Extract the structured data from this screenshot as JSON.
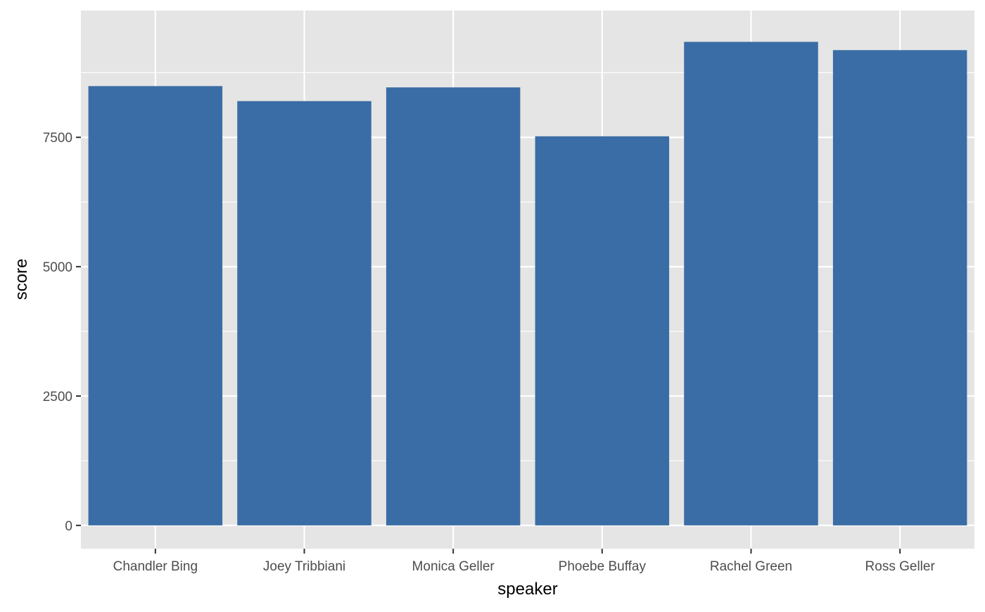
{
  "chart_data": {
    "type": "bar",
    "title": "",
    "xlabel": "speaker",
    "ylabel": "score",
    "categories": [
      "Chandler Bing",
      "Joey Tribbiani",
      "Monica Geller",
      "Phoebe Buffay",
      "Rachel Green",
      "Ross Geller"
    ],
    "values": [
      8490,
      8200,
      8465,
      7520,
      9345,
      9185
    ],
    "ylim": [
      -450,
      9950
    ],
    "y_ticks": [
      0,
      2500,
      5000,
      7500
    ],
    "y_tick_labels": [
      "0",
      "2500",
      "5000",
      "7500"
    ],
    "grid": true,
    "legend": "none"
  },
  "colors": {
    "bar_fill": "#3A6DA5",
    "panel_background": "#E5E5E5",
    "grid_line": "#FFFFFF",
    "tick_mark": "#333333",
    "tick_text": "#4D4D4D",
    "axis_title_text": "#000000"
  }
}
